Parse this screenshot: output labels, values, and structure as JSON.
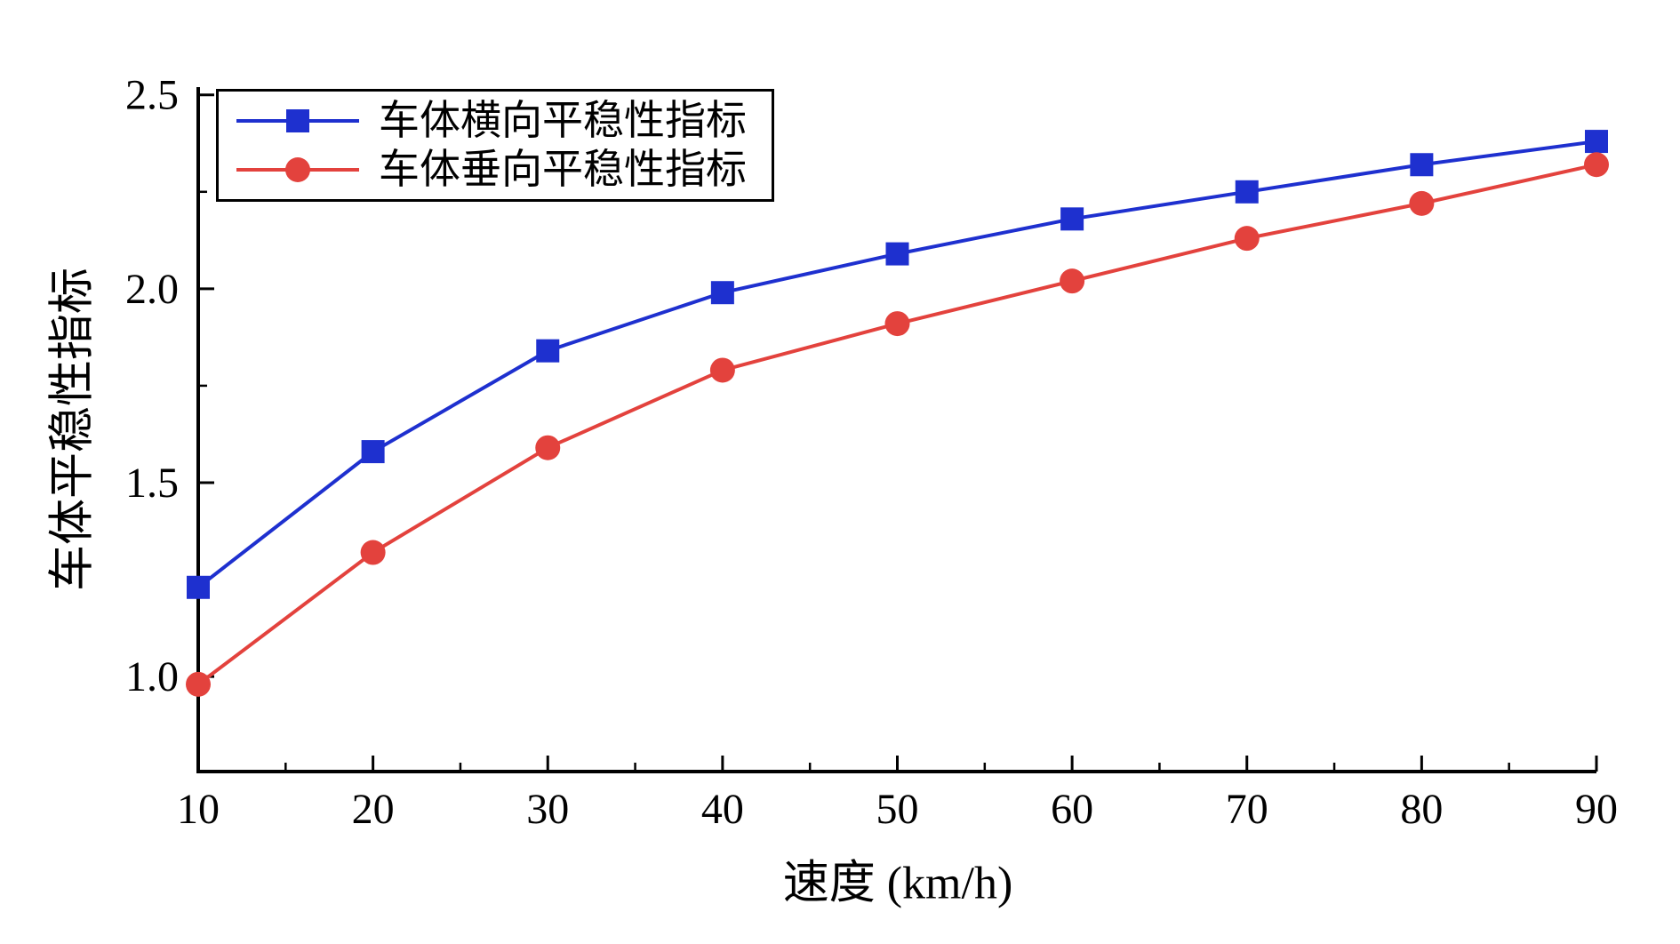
{
  "chart_data": {
    "type": "line",
    "title": "",
    "xlabel": "速度 (km/h)",
    "ylabel": "车体平稳性指标",
    "x": [
      10,
      20,
      30,
      40,
      50,
      60,
      70,
      80,
      90
    ],
    "series": [
      {
        "name": "车体横向平稳性指标",
        "marker": "square",
        "color": "#1E30CF",
        "values": [
          1.23,
          1.58,
          1.84,
          1.99,
          2.09,
          2.18,
          2.25,
          2.32,
          2.38
        ]
      },
      {
        "name": "车体垂向平稳性指标",
        "marker": "circle",
        "color": "#E3423D",
        "values": [
          0.98,
          1.32,
          1.59,
          1.79,
          1.91,
          2.02,
          2.13,
          2.22,
          2.32
        ]
      }
    ],
    "xlim": [
      10,
      90
    ],
    "ylim": [
      0.755,
      2.52
    ],
    "x_ticks": [
      10,
      20,
      30,
      40,
      50,
      60,
      70,
      80,
      90
    ],
    "y_ticks": [
      1.0,
      1.5,
      2.0,
      2.5
    ],
    "x_minor_step": 5,
    "y_minor_step": 0.25,
    "grid": false,
    "legend_position": "top-left",
    "axis_color": "#000000"
  }
}
